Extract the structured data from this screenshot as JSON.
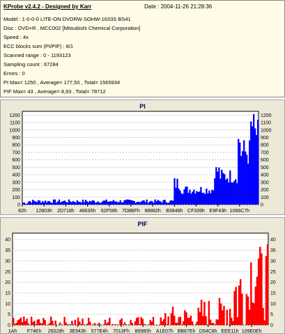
{
  "header": {
    "title": "KProbe v2.4.2 - Designed by Karr",
    "date": "Date : 2004-11-26 21:28:36",
    "rows": [
      "Model : 1-0-0-0 LITE-ON DVDRW SOHW-1633S BS41",
      "Disc : DVD+R , MCC002 [Mitsubishi Chemical Corporation]",
      "Speed : 4x",
      "ECC blocks sum (PI/PIF) : 8/1",
      "Scanned range : 0 - 1193123",
      "Sampling count : 67284",
      "Errors : 0",
      "PI Max= 1250 , Average= 177,50 , Total= 1565934",
      "PIF Max= 43 , Average= 8,93 , Total= 78712"
    ]
  },
  "chart_data": [
    {
      "type": "area",
      "title": "PI",
      "color": "#0000ff",
      "ylim": [
        0,
        1250
      ],
      "y_ticks": [
        0,
        100,
        200,
        300,
        400,
        500,
        600,
        700,
        800,
        900,
        1000,
        1100,
        1200
      ],
      "x_tick_labels": [
        "82h",
        "12803h",
        "2D718h",
        "48635h",
        "62F58h",
        "7D8BFh",
        "98882h",
        "B3948h",
        "CF339h",
        "E9F43h",
        "1066C7h"
      ],
      "x_tick_fractions": [
        0.0,
        0.092,
        0.184,
        0.276,
        0.368,
        0.46,
        0.552,
        0.644,
        0.736,
        0.828,
        0.92
      ],
      "segments": [
        {
          "from": 0.0,
          "to": 0.02,
          "base": 25,
          "noise": 20
        },
        {
          "from": 0.02,
          "to": 0.64,
          "base": 45,
          "noise": 25
        },
        {
          "from": 0.64,
          "to": 0.67,
          "base": 280,
          "noise": 100
        },
        {
          "from": 0.67,
          "to": 0.81,
          "base": 200,
          "noise": 60
        },
        {
          "from": 0.81,
          "to": 0.83,
          "base": 450,
          "noise": 100
        },
        {
          "from": 0.83,
          "to": 0.91,
          "base": 380,
          "noise": 100
        },
        {
          "from": 0.91,
          "to": 0.92,
          "base": 850,
          "noise": 150
        },
        {
          "from": 0.92,
          "to": 0.96,
          "base": 700,
          "noise": 200
        },
        {
          "from": 0.96,
          "to": 0.98,
          "base": 1050,
          "noise": 200
        },
        {
          "from": 0.98,
          "to": 1.0,
          "base": 950,
          "noise": 200
        }
      ]
    },
    {
      "type": "bar",
      "title": "PIF",
      "color": "#ff0000",
      "ylim": [
        0,
        43
      ],
      "y_ticks": [
        0,
        5,
        10,
        15,
        20,
        25,
        30,
        35,
        40
      ],
      "x_tick_labels": [
        "1Ah",
        "F74Eh",
        "26028h",
        "3E943h",
        "577E4h",
        "7013Fh",
        "88980h",
        "A1E07h",
        "BB87Eh",
        "D54C8h",
        "EEE11h",
        "109E0Eh"
      ],
      "x_tick_fractions": [
        0.0,
        0.085,
        0.17,
        0.255,
        0.34,
        0.425,
        0.51,
        0.595,
        0.68,
        0.765,
        0.85,
        0.935
      ],
      "segments": [
        {
          "from": 0.0,
          "to": 0.59,
          "base": 1,
          "noise": 3
        },
        {
          "from": 0.59,
          "to": 0.73,
          "base": 3,
          "noise": 6
        },
        {
          "from": 0.73,
          "to": 0.82,
          "base": 5,
          "noise": 8
        },
        {
          "from": 0.82,
          "to": 0.86,
          "base": 8,
          "noise": 12
        },
        {
          "from": 0.86,
          "to": 0.92,
          "base": 15,
          "noise": 20
        },
        {
          "from": 0.92,
          "to": 0.96,
          "base": 25,
          "noise": 18
        },
        {
          "from": 0.96,
          "to": 1.0,
          "base": 20,
          "noise": 18
        }
      ]
    }
  ]
}
